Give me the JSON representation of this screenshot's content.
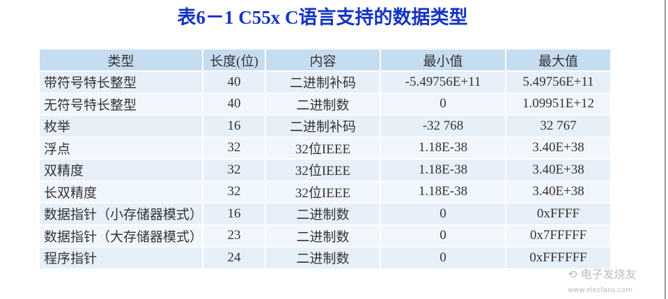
{
  "title": "表6－1  C55x C语言支持的数据类型",
  "table": {
    "headers": [
      "类型",
      "长度(位)",
      "内容",
      "最小值",
      "最大值"
    ],
    "rows": [
      [
        "带符号特长整型",
        "40",
        "二进制补码",
        "-5.49756E+11",
        "5.49756E+11"
      ],
      [
        "无符号特长整型",
        "40",
        "二进制数",
        "0",
        "1.09951E+12"
      ],
      [
        "枚举",
        "16",
        "二进制补码",
        "-32 768",
        "32 767"
      ],
      [
        "浮点",
        "32",
        "32位IEEE",
        "1.18E-38",
        "3.40E+38"
      ],
      [
        "双精度",
        "32",
        "32位IEEE",
        "1.18E-38",
        "3.40E+38"
      ],
      [
        "长双精度",
        "32",
        "32位IEEE",
        "1.18E-38",
        "3.40E+38"
      ],
      [
        "数据指针（小存储器模式）",
        "16",
        "二进制数",
        "0",
        "0xFFFF"
      ],
      [
        "数据指针（大存储器模式）",
        "23",
        "二进制数",
        "0",
        "0x7FFFFF"
      ],
      [
        "程序指针",
        "24",
        "二进制数",
        "0",
        "0xFFFFFF"
      ]
    ]
  },
  "watermark": "电子发烧友 www.elecfans.com"
}
